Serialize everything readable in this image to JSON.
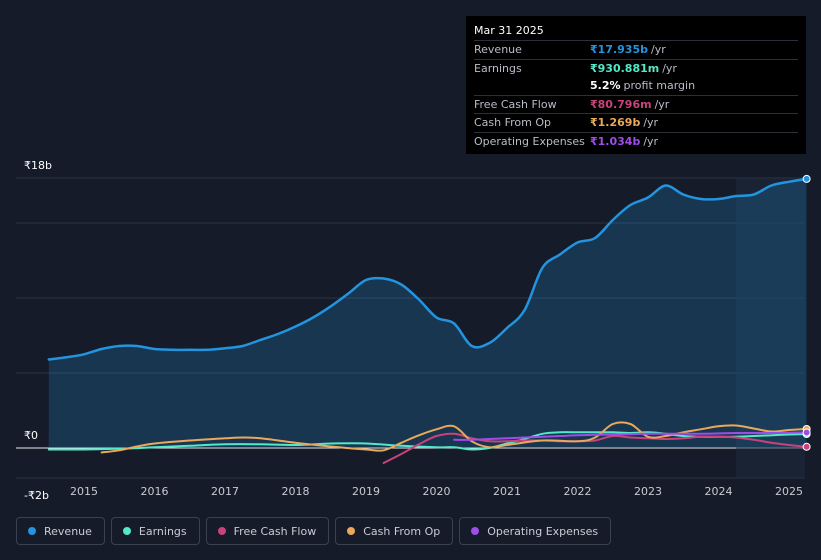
{
  "chart_data": {
    "type": "line",
    "currency_symbol": "₹",
    "y_axis_labels": [
      "₹18b",
      "₹0",
      "-₹2b"
    ],
    "ylim": [
      -2,
      18
    ],
    "x_tick_labels": [
      "2015",
      "2016",
      "2017",
      "2018",
      "2019",
      "2020",
      "2021",
      "2022",
      "2023",
      "2024",
      "2025"
    ],
    "xlim": [
      2014.5,
      2025.25
    ],
    "forecast_region_start": 2024.25,
    "series": [
      {
        "name": "Revenue",
        "color": "#2394df",
        "fill": true,
        "x": [
          2014.5,
          2014.75,
          2015.0,
          2015.25,
          2015.5,
          2015.75,
          2016.0,
          2016.25,
          2016.5,
          2016.75,
          2017.0,
          2017.25,
          2017.5,
          2017.75,
          2018.0,
          2018.25,
          2018.5,
          2018.75,
          2019.0,
          2019.25,
          2019.5,
          2019.75,
          2020.0,
          2020.25,
          2020.5,
          2020.75,
          2021.0,
          2021.25,
          2021.5,
          2021.75,
          2022.0,
          2022.25,
          2022.5,
          2022.75,
          2023.0,
          2023.25,
          2023.5,
          2023.75,
          2024.0,
          2024.25,
          2024.5,
          2024.75,
          2025.0,
          2025.25
        ],
        "values": [
          5.9,
          6.05,
          6.25,
          6.6,
          6.8,
          6.8,
          6.6,
          6.55,
          6.55,
          6.55,
          6.65,
          6.8,
          7.2,
          7.6,
          8.1,
          8.7,
          9.45,
          10.3,
          11.2,
          11.3,
          10.9,
          9.9,
          8.7,
          8.3,
          6.8,
          7.0,
          8.0,
          9.2,
          12.0,
          12.9,
          13.7,
          14.0,
          15.2,
          16.2,
          16.7,
          17.5,
          16.9,
          16.6,
          16.6,
          16.8,
          16.9,
          17.5,
          17.75,
          17.94
        ]
      },
      {
        "name": "Earnings",
        "color": "#53e8c8",
        "fill": false,
        "x": [
          2014.5,
          2015.0,
          2015.5,
          2016.0,
          2016.5,
          2017.0,
          2017.5,
          2018.0,
          2018.5,
          2019.0,
          2019.5,
          2020.0,
          2020.25,
          2020.5,
          2020.75,
          2021.0,
          2021.25,
          2021.5,
          2021.75,
          2022.0,
          2022.25,
          2022.5,
          2022.75,
          2023.0,
          2023.25,
          2023.5,
          2023.75,
          2024.0,
          2024.25,
          2024.5,
          2024.75,
          2025.0,
          2025.25
        ],
        "values": [
          -0.1,
          -0.1,
          -0.05,
          0.05,
          0.15,
          0.25,
          0.25,
          0.2,
          0.3,
          0.3,
          0.15,
          0.05,
          0.05,
          -0.1,
          0.0,
          0.3,
          0.6,
          0.95,
          1.05,
          1.05,
          1.05,
          1.05,
          1.0,
          1.05,
          0.95,
          0.8,
          0.75,
          0.75,
          0.75,
          0.8,
          0.85,
          0.9,
          0.93
        ]
      },
      {
        "name": "Free Cash Flow",
        "color": "#c8437a",
        "fill": false,
        "x": [
          2019.25,
          2019.5,
          2019.75,
          2020.0,
          2020.25,
          2020.5,
          2020.75,
          2021.0,
          2021.25,
          2021.5,
          2021.75,
          2022.0,
          2022.25,
          2022.5,
          2022.75,
          2023.0,
          2023.25,
          2023.5,
          2023.75,
          2024.0,
          2024.25,
          2024.5,
          2024.75,
          2025.0,
          2025.25
        ],
        "values": [
          -1.0,
          -0.4,
          0.25,
          0.8,
          0.95,
          0.65,
          0.45,
          0.45,
          0.5,
          0.5,
          0.45,
          0.45,
          0.5,
          0.8,
          0.7,
          0.65,
          0.6,
          0.65,
          0.75,
          0.75,
          0.7,
          0.55,
          0.35,
          0.2,
          0.08
        ]
      },
      {
        "name": "Cash From Op",
        "color": "#e8a95b",
        "fill": false,
        "x": [
          2015.25,
          2015.5,
          2015.75,
          2016.0,
          2016.5,
          2017.0,
          2017.25,
          2017.5,
          2018.0,
          2018.5,
          2019.0,
          2019.25,
          2019.5,
          2019.75,
          2020.0,
          2020.25,
          2020.5,
          2020.75,
          2021.0,
          2021.5,
          2022.0,
          2022.25,
          2022.5,
          2022.75,
          2023.0,
          2023.25,
          2023.5,
          2023.75,
          2024.0,
          2024.25,
          2024.5,
          2024.75,
          2025.0,
          2025.25
        ],
        "values": [
          -0.3,
          -0.15,
          0.1,
          0.3,
          0.5,
          0.65,
          0.7,
          0.65,
          0.35,
          0.1,
          -0.1,
          -0.15,
          0.35,
          0.85,
          1.25,
          1.45,
          0.45,
          0.05,
          0.2,
          0.5,
          0.45,
          0.7,
          1.6,
          1.6,
          0.75,
          0.8,
          1.05,
          1.25,
          1.45,
          1.5,
          1.3,
          1.1,
          1.2,
          1.27
        ]
      },
      {
        "name": "Operating Expenses",
        "color": "#9e4de8",
        "fill": false,
        "x": [
          2020.25,
          2020.5,
          2020.75,
          2021.0,
          2021.25,
          2021.5,
          2021.75,
          2022.0,
          2022.25,
          2022.5,
          2022.75,
          2023.0,
          2023.25,
          2023.5,
          2023.75,
          2024.0,
          2024.25,
          2024.5,
          2024.75,
          2025.0,
          2025.25
        ],
        "values": [
          0.55,
          0.55,
          0.6,
          0.65,
          0.7,
          0.75,
          0.8,
          0.85,
          0.88,
          0.9,
          0.92,
          0.95,
          0.95,
          0.95,
          0.95,
          0.97,
          1.0,
          1.0,
          1.0,
          1.02,
          1.034
        ]
      }
    ],
    "legend": [
      "Revenue",
      "Earnings",
      "Free Cash Flow",
      "Cash From Op",
      "Operating Expenses"
    ],
    "tooltip": {
      "date": "Mar 31 2025",
      "rows": [
        {
          "label": "Revenue",
          "value": "₹17.935b",
          "unit": "/yr",
          "color": "#2394df"
        },
        {
          "label": "Earnings",
          "value": "₹930.881m",
          "unit": "/yr",
          "color": "#53e8c8"
        },
        {
          "label": "Free Cash Flow",
          "value": "₹80.796m",
          "unit": "/yr",
          "color": "#c8437a"
        },
        {
          "label": "Cash From Op",
          "value": "₹1.269b",
          "unit": "/yr",
          "color": "#e8a95b"
        },
        {
          "label": "Operating Expenses",
          "value": "₹1.034b",
          "unit": "/yr",
          "color": "#9e4de8"
        }
      ],
      "profit_margin_value": "5.2%",
      "profit_margin_label": "profit margin"
    }
  }
}
